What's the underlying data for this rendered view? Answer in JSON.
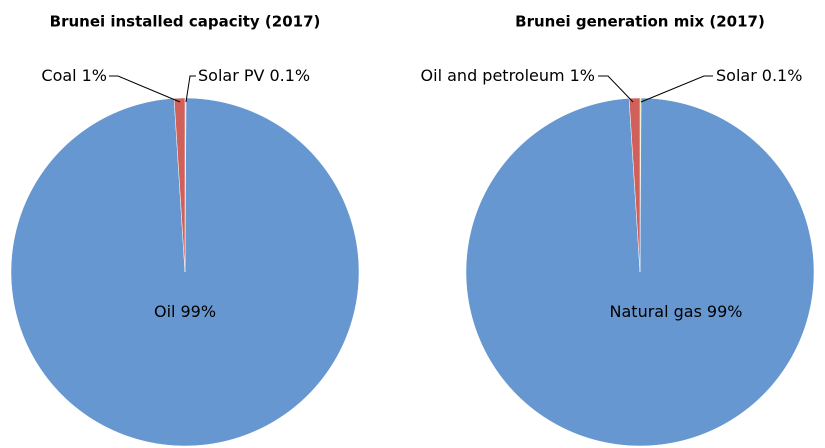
{
  "chart_data": [
    {
      "type": "pie",
      "title": "Brunei installed capacity (2017)",
      "categories": [
        "Solar PV",
        "Oil",
        "Coal"
      ],
      "values": [
        0.1,
        99,
        1
      ],
      "value_labels": [
        "0.1%",
        "99%",
        "1%"
      ],
      "colors": [
        "#b8c84a",
        "#6797d0",
        "#d0605a"
      ]
    },
    {
      "type": "pie",
      "title": "Brunei generation mix (2017)",
      "categories": [
        "Solar",
        "Natural gas",
        "Oil and petroleum"
      ],
      "values": [
        0.1,
        99,
        1
      ],
      "value_labels": [
        "0.1%",
        "99%",
        "1%"
      ],
      "colors": [
        "#b8c84a",
        "#6797d0",
        "#d0605a"
      ]
    }
  ]
}
